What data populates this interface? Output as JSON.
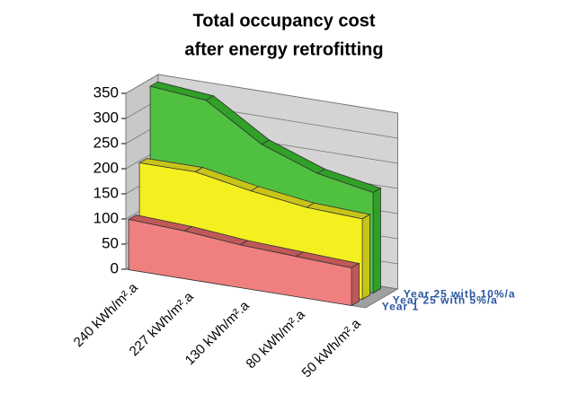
{
  "chart_data": {
    "type": "area3d",
    "title": [
      "Total occupancy cost",
      "after energy retrofitting"
    ],
    "categories": [
      "240 kWh/m².a",
      "227 kWh/m².a",
      "130 kWh/m².a",
      "80 kWh/m².a",
      "50 kWh/m².a"
    ],
    "series": [
      {
        "name": "Year 1",
        "color": "#f08080",
        "top": "#c05858",
        "values": [
          100,
          95,
          85,
          80,
          75
        ]
      },
      {
        "name": "Year 25 with 5%/a",
        "color": "#f4f020",
        "top": "#c8c418",
        "values": [
          200,
          200,
          180,
          165,
          160
        ]
      },
      {
        "name": "Year 25 with 10%/a",
        "color": "#50c040",
        "top": "#30a028",
        "values": [
          340,
          330,
          260,
          220,
          200
        ]
      }
    ],
    "ylim": [
      0,
      350
    ],
    "yticks": [
      0,
      50,
      100,
      150,
      200,
      250,
      300,
      350
    ],
    "grid": true
  }
}
